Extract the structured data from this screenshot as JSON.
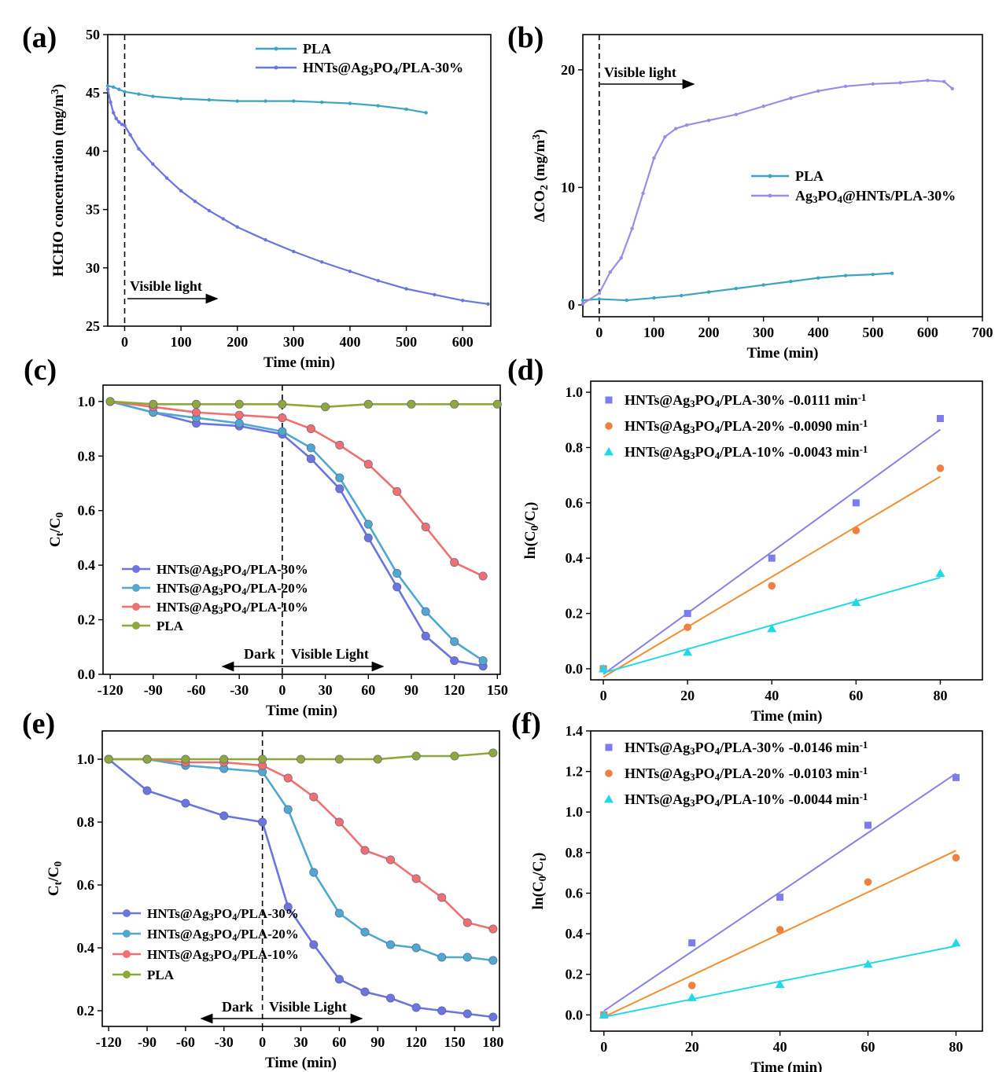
{
  "chart_data": [
    {
      "panel": "(a)",
      "type": "line",
      "xlabel": "Time (min)",
      "ylabel_parts": [
        "HCHO concentration (mg/m",
        "3",
        ")"
      ],
      "xlim": [
        -30,
        650
      ],
      "ylim": [
        25,
        50
      ],
      "xticks": [
        0,
        100,
        200,
        300,
        400,
        500,
        600
      ],
      "yticks": [
        25,
        30,
        35,
        40,
        45,
        50
      ],
      "dashed_x": 0,
      "annotation": "Visible light",
      "series": [
        {
          "name": "PLA",
          "color": "#3fa3c3",
          "x": [
            -30,
            -20,
            -10,
            0,
            25,
            50,
            100,
            150,
            200,
            250,
            300,
            350,
            400,
            450,
            500,
            535
          ],
          "y": [
            45.6,
            45.5,
            45.3,
            45.1,
            44.9,
            44.7,
            44.5,
            44.4,
            44.3,
            44.3,
            44.3,
            44.2,
            44.1,
            43.9,
            43.6,
            43.3
          ]
        },
        {
          "name": "HNTs@Ag3PO4/PLA-30%",
          "color": "#6b75e0",
          "label_parts": [
            "HNTs@Ag",
            "3",
            "PO",
            "4",
            "/PLA-30%"
          ],
          "x": [
            -30,
            -25,
            -20,
            -15,
            -10,
            -5,
            0,
            10,
            25,
            50,
            75,
            100,
            125,
            150,
            175,
            200,
            250,
            300,
            350,
            400,
            450,
            500,
            550,
            600,
            645
          ],
          "y": [
            45.3,
            44.2,
            43.3,
            42.8,
            42.5,
            42.3,
            42.2,
            41.4,
            40.2,
            38.9,
            37.7,
            36.6,
            35.7,
            34.9,
            34.2,
            33.5,
            32.4,
            31.4,
            30.5,
            29.7,
            28.9,
            28.2,
            27.7,
            27.2,
            26.9
          ]
        }
      ]
    },
    {
      "panel": "(b)",
      "type": "line",
      "xlabel": "Time (min)",
      "ylabel_parts": [
        "ΔCO",
        "2",
        " (mg/m",
        "3",
        ")"
      ],
      "xlim": [
        -30,
        700
      ],
      "ylim": [
        -1,
        23
      ],
      "xticks": [
        0,
        100,
        200,
        300,
        400,
        500,
        600,
        700
      ],
      "yticks": [
        0,
        10,
        20
      ],
      "dashed_x": 0,
      "annotation": "Visible light",
      "series": [
        {
          "name": "PLA",
          "color": "#3fa3c3",
          "x": [
            -30,
            0,
            50,
            100,
            150,
            200,
            250,
            300,
            350,
            400,
            450,
            500,
            535
          ],
          "y": [
            0.4,
            0.5,
            0.4,
            0.6,
            0.8,
            1.1,
            1.4,
            1.7,
            2.0,
            2.3,
            2.5,
            2.6,
            2.7
          ]
        },
        {
          "name": "Ag3PO4@HNTs/PLA-30%",
          "color": "#9b8ce6",
          "label_parts": [
            "Ag",
            "3",
            "PO",
            "4",
            "@HNTs/PLA-30%"
          ],
          "x": [
            -30,
            0,
            20,
            40,
            60,
            80,
            100,
            120,
            140,
            160,
            200,
            250,
            300,
            350,
            400,
            450,
            500,
            550,
            600,
            630,
            645
          ],
          "y": [
            0.1,
            1.0,
            2.8,
            4.0,
            6.5,
            9.5,
            12.5,
            14.3,
            15.0,
            15.3,
            15.7,
            16.2,
            16.9,
            17.6,
            18.2,
            18.6,
            18.8,
            18.9,
            19.1,
            19.0,
            18.4
          ]
        }
      ]
    },
    {
      "panel": "(c)",
      "type": "line",
      "xlabel": "Time (min)",
      "ylabel_parts": [
        "C",
        "t",
        "/C",
        "0"
      ],
      "xlim": [
        -125,
        152
      ],
      "ylim": [
        0,
        1.06
      ],
      "xticks": [
        -120,
        -90,
        -60,
        -30,
        0,
        30,
        60,
        90,
        120,
        150
      ],
      "yticks": [
        0.0,
        0.2,
        0.4,
        0.6,
        0.8,
        1.0
      ],
      "dashed_x": 0,
      "annotation_left": "Dark",
      "annotation_right": "Visible Light",
      "series": [
        {
          "name": "HNTs@Ag3PO4/PLA-30%",
          "color": "#6b75e0",
          "label_parts": [
            "HNTs@Ag",
            "3",
            "PO",
            "4",
            "/PLA-30%"
          ],
          "x": [
            -120,
            -90,
            -60,
            -30,
            0,
            20,
            40,
            60,
            80,
            100,
            120,
            140
          ],
          "y": [
            1.0,
            0.96,
            0.92,
            0.91,
            0.88,
            0.79,
            0.68,
            0.5,
            0.32,
            0.14,
            0.05,
            0.03
          ]
        },
        {
          "name": "HNTs@Ag3PO4/PLA-20%",
          "color": "#4fa8cf",
          "label_parts": [
            "HNTs@Ag",
            "3",
            "PO",
            "4",
            "/PLA-20%"
          ],
          "x": [
            -120,
            -90,
            -60,
            -30,
            0,
            20,
            40,
            60,
            80,
            100,
            120,
            140
          ],
          "y": [
            1.0,
            0.96,
            0.94,
            0.92,
            0.89,
            0.83,
            0.72,
            0.55,
            0.37,
            0.23,
            0.12,
            0.05
          ]
        },
        {
          "name": "HNTs@Ag3PO4/PLA-10%",
          "color": "#f07070",
          "label_parts": [
            "HNTs@Ag",
            "3",
            "PO",
            "4",
            "/PLA-10%"
          ],
          "x": [
            -120,
            -90,
            -60,
            -30,
            0,
            20,
            40,
            60,
            80,
            100,
            120,
            140
          ],
          "y": [
            1.0,
            0.98,
            0.96,
            0.95,
            0.94,
            0.9,
            0.84,
            0.77,
            0.67,
            0.54,
            0.41,
            0.36
          ]
        },
        {
          "name": "PLA",
          "color": "#8fa83a",
          "label_parts": [
            "PLA"
          ],
          "x": [
            -120,
            -90,
            -60,
            -30,
            0,
            30,
            60,
            90,
            120,
            150
          ],
          "y": [
            1.0,
            0.99,
            0.99,
            0.99,
            0.99,
            0.98,
            0.99,
            0.99,
            0.99,
            0.99
          ]
        }
      ]
    },
    {
      "panel": "(d)",
      "type": "scatter",
      "xlabel": "Time (min)",
      "ylabel_parts": [
        "ln(C",
        "0",
        "/C",
        "t",
        ")"
      ],
      "xlim": [
        -3,
        90
      ],
      "ylim": [
        -0.04,
        1.04
      ],
      "xticks": [
        0,
        20,
        40,
        60,
        80
      ],
      "yticks": [
        0.0,
        0.2,
        0.4,
        0.6,
        0.8,
        1.0
      ],
      "series": [
        {
          "name": "HNTs@Ag3PO4/PLA-30% -0.0111 min-1",
          "color": "#7c7cf0",
          "marker": "square",
          "line_color": "#8a80ea",
          "label_parts": [
            "HNTs@Ag",
            "3",
            "PO",
            "4",
            "/PLA-30% -0.0111 min",
            "-1"
          ],
          "x": [
            0,
            20,
            40,
            60,
            80
          ],
          "y": [
            0.0,
            0.2,
            0.4,
            0.6,
            0.905
          ],
          "fit": [
            [
              0,
              -0.02
            ],
            [
              80,
              0.865
            ]
          ]
        },
        {
          "name": "HNTs@Ag3PO4/PLA-20% -0.0090 min-1",
          "color": "#f08040",
          "marker": "circle",
          "line_color": "#f09030",
          "label_parts": [
            "HNTs@Ag",
            "3",
            "PO",
            "4",
            "/PLA-20% -0.0090 min",
            "-1"
          ],
          "x": [
            0,
            20,
            40,
            60,
            80
          ],
          "y": [
            0.0,
            0.15,
            0.3,
            0.5,
            0.725
          ],
          "fit": [
            [
              0,
              -0.03
            ],
            [
              80,
              0.695
            ]
          ]
        },
        {
          "name": "HNTs@Ag3PO4/PLA-10% -0.0043 min-1",
          "color": "#20d8e8",
          "marker": "triangle",
          "line_color": "#20d8e8",
          "label_parts": [
            "HNTs@Ag",
            "3",
            "PO",
            "4",
            "/PLA-10% -0.0043 min",
            "-1"
          ],
          "x": [
            0,
            20,
            40,
            60,
            80
          ],
          "y": [
            0.0,
            0.06,
            0.145,
            0.24,
            0.345
          ],
          "fit": [
            [
              0,
              -0.015
            ],
            [
              80,
              0.33
            ]
          ]
        }
      ]
    },
    {
      "panel": "(e)",
      "type": "line",
      "xlabel": "Time (min)",
      "ylabel_parts": [
        "C",
        "t",
        "/C",
        "0"
      ],
      "xlim": [
        -125,
        185
      ],
      "ylim": [
        0.15,
        1.09
      ],
      "xticks": [
        -120,
        -90,
        -60,
        -30,
        0,
        30,
        60,
        90,
        120,
        150,
        180
      ],
      "yticks": [
        0.2,
        0.4,
        0.6,
        0.8,
        1.0
      ],
      "dashed_x": 0,
      "annotation_left": "Dark",
      "annotation_right": "Visible Light",
      "series": [
        {
          "name": "HNTs@Ag3PO4/PLA-30%",
          "color": "#6b75e0",
          "label_parts": [
            "HNTs@Ag",
            "3",
            "PO",
            "4",
            "/PLA-30%"
          ],
          "x": [
            -120,
            -90,
            -60,
            -30,
            0,
            20,
            40,
            60,
            80,
            100,
            120,
            140,
            160,
            180
          ],
          "y": [
            1.0,
            0.9,
            0.86,
            0.82,
            0.8,
            0.53,
            0.41,
            0.3,
            0.26,
            0.24,
            0.21,
            0.2,
            0.19,
            0.18
          ]
        },
        {
          "name": "HNTs@Ag3PO4/PLA-20%",
          "color": "#4fa8cf",
          "label_parts": [
            "HNTs@Ag",
            "3",
            "PO",
            "4",
            "/PLA-20%"
          ],
          "x": [
            -120,
            -90,
            -60,
            -30,
            0,
            20,
            40,
            60,
            80,
            100,
            120,
            140,
            160,
            180
          ],
          "y": [
            1.0,
            1.0,
            0.98,
            0.97,
            0.96,
            0.84,
            0.64,
            0.51,
            0.45,
            0.41,
            0.4,
            0.37,
            0.37,
            0.36
          ]
        },
        {
          "name": "HNTs@Ag3PO4/PLA-10%",
          "color": "#f07070",
          "label_parts": [
            "HNTs@Ag",
            "3",
            "PO",
            "4",
            "/PLA-10%"
          ],
          "x": [
            -120,
            -90,
            -60,
            -30,
            0,
            20,
            40,
            60,
            80,
            100,
            120,
            140,
            160,
            180
          ],
          "y": [
            1.0,
            1.0,
            0.99,
            0.99,
            0.98,
            0.94,
            0.88,
            0.8,
            0.71,
            0.68,
            0.62,
            0.56,
            0.48,
            0.46
          ]
        },
        {
          "name": "PLA",
          "color": "#8fa83a",
          "label_parts": [
            "PLA"
          ],
          "x": [
            -120,
            -90,
            -60,
            -30,
            0,
            30,
            60,
            90,
            120,
            150,
            180
          ],
          "y": [
            1.0,
            1.0,
            1.0,
            1.0,
            1.0,
            1.0,
            1.0,
            1.0,
            1.01,
            1.01,
            1.02
          ]
        }
      ]
    },
    {
      "panel": "(f)",
      "type": "scatter",
      "xlabel": "Time (min)",
      "ylabel_parts": [
        "ln(C",
        "0",
        "/C",
        "t",
        ")"
      ],
      "xlim": [
        -3,
        86
      ],
      "ylim": [
        -0.08,
        1.4
      ],
      "xticks": [
        0,
        20,
        40,
        60,
        80
      ],
      "yticks": [
        0.0,
        0.2,
        0.4,
        0.6,
        0.8,
        1.0,
        1.2,
        1.4
      ],
      "series": [
        {
          "name": "HNTs@Ag3PO4/PLA-30% -0.0146 min-1",
          "color": "#7c7cf0",
          "marker": "square",
          "line_color": "#8a80ea",
          "label_parts": [
            "HNTs@Ag",
            "3",
            "PO",
            "4",
            "/PLA-30% -0.0146 min",
            "-1"
          ],
          "x": [
            0,
            20,
            40,
            60,
            80
          ],
          "y": [
            0.0,
            0.355,
            0.58,
            0.935,
            1.17
          ],
          "fit": [
            [
              0,
              0.02
            ],
            [
              80,
              1.19
            ]
          ]
        },
        {
          "name": "HNTs@Ag3PO4/PLA-20% -0.0103 min-1",
          "color": "#f08040",
          "marker": "circle",
          "line_color": "#f09030",
          "label_parts": [
            "HNTs@Ag",
            "3",
            "PO",
            "4",
            "/PLA-20% -0.0103 min",
            "-1"
          ],
          "x": [
            0,
            20,
            40,
            60,
            80
          ],
          "y": [
            0.0,
            0.145,
            0.42,
            0.655,
            0.775
          ],
          "fit": [
            [
              0,
              -0.01
            ],
            [
              80,
              0.81
            ]
          ]
        },
        {
          "name": "HNTs@Ag3PO4/PLA-10% -0.0044 min-1",
          "color": "#20d8e8",
          "marker": "triangle",
          "line_color": "#20d8e8",
          "label_parts": [
            "HNTs@Ag",
            "3",
            "PO",
            "4",
            "/PLA-10% -0.0044 min",
            "-1"
          ],
          "x": [
            0,
            20,
            40,
            60,
            80
          ],
          "y": [
            0.0,
            0.085,
            0.15,
            0.25,
            0.355
          ],
          "fit": [
            [
              0,
              -0.01
            ],
            [
              80,
              0.34
            ]
          ]
        }
      ]
    }
  ]
}
